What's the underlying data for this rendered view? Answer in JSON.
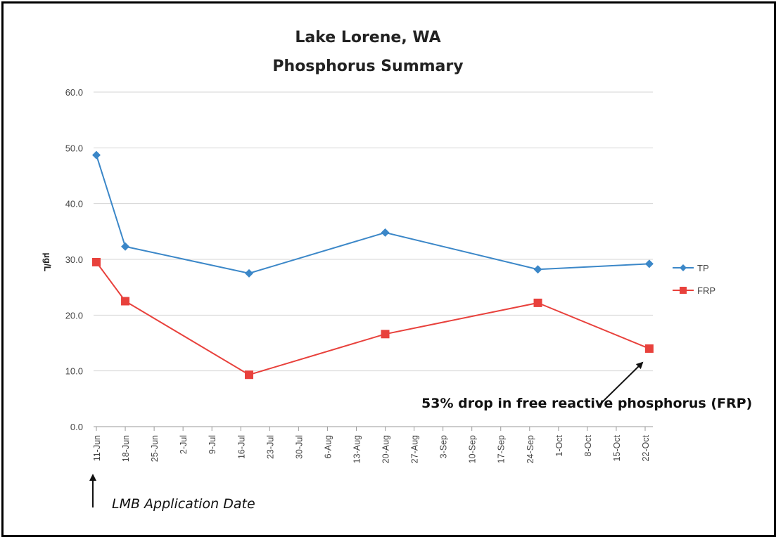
{
  "chart_data": {
    "type": "line",
    "title": "Lake Lorene, WA",
    "subtitle": "Phosphorus Summary",
    "ylabel": "µg/L",
    "ylim": [
      0,
      60
    ],
    "yticks": [
      "0.0",
      "10.0",
      "20.0",
      "30.0",
      "40.0",
      "50.0",
      "60.0"
    ],
    "x_tick_labels": [
      "11-Jun",
      "18-Jun",
      "25-Jun",
      "2-Jul",
      "9-Jul",
      "16-Jul",
      "23-Jul",
      "30-Jul",
      "6-Aug",
      "13-Aug",
      "20-Aug",
      "27-Aug",
      "3-Sep",
      "10-Sep",
      "17-Sep",
      "24-Sep",
      "1-Oct",
      "8-Oct",
      "15-Oct",
      "22-Oct"
    ],
    "grid": true,
    "legend_position": "right",
    "series": [
      {
        "name": "TP",
        "color": "#3b87c8",
        "marker": "diamond",
        "x": [
          "11-Jun",
          "18-Jun",
          "18-Jul",
          "20-Aug",
          "26-Sep",
          "23-Oct"
        ],
        "values": [
          48.7,
          32.3,
          27.5,
          34.8,
          28.2,
          29.2
        ]
      },
      {
        "name": "FRP",
        "color": "#e8413c",
        "marker": "square",
        "x": [
          "11-Jun",
          "18-Jun",
          "18-Jul",
          "20-Aug",
          "26-Sep",
          "23-Oct"
        ],
        "values": [
          29.5,
          22.5,
          9.3,
          16.6,
          22.2,
          14.0
        ]
      }
    ],
    "annotations": {
      "frp_drop": "53% drop in free reactive phosphorus (FRP)",
      "lmb_date": "LMB Application Date"
    }
  }
}
